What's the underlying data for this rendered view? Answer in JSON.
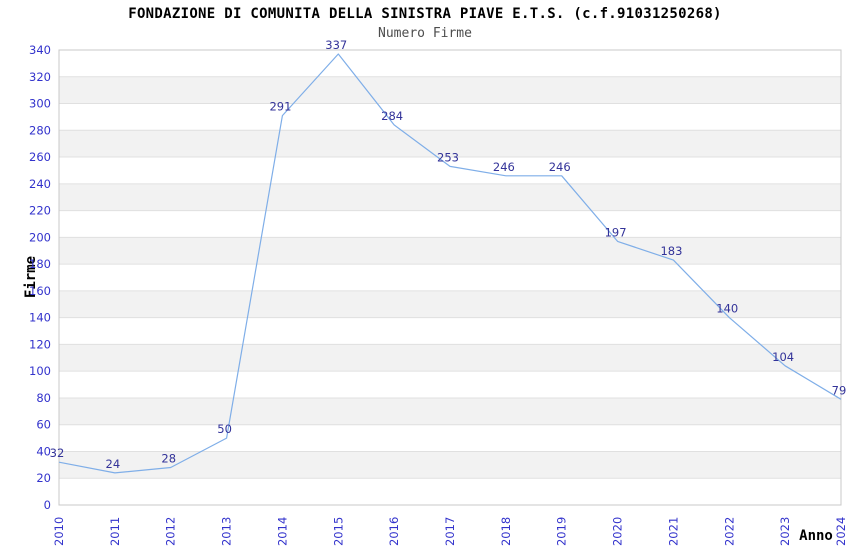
{
  "chart_data": {
    "type": "line",
    "title": "FONDAZIONE DI COMUNITA DELLA SINISTRA PIAVE E.T.S. (c.f.91031250268)",
    "subtitle": "Numero Firme",
    "xlabel": "Anno",
    "ylabel": "Firme",
    "x": [
      "2010",
      "2011",
      "2012",
      "2013",
      "2014",
      "2015",
      "2016",
      "2017",
      "2018",
      "2019",
      "2020",
      "2021",
      "2022",
      "2023",
      "2024"
    ],
    "values": [
      32,
      24,
      28,
      50,
      291,
      337,
      284,
      253,
      246,
      246,
      197,
      183,
      140,
      104,
      79
    ],
    "ylim": [
      0,
      340
    ],
    "ytick_step": 20,
    "grid": true,
    "legend": "none",
    "band_fill": "alternating",
    "colors": {
      "line": "#7FAEE8",
      "data_label": "#333399",
      "tick_label": "#3333CC",
      "axis_label": "#000000",
      "title": "#000000",
      "subtitle": "#4D4D4D",
      "band": "#F2F2F2",
      "grid": "#E0E0E0",
      "border": "#C8C8C8",
      "background": "#FFFFFF"
    }
  }
}
